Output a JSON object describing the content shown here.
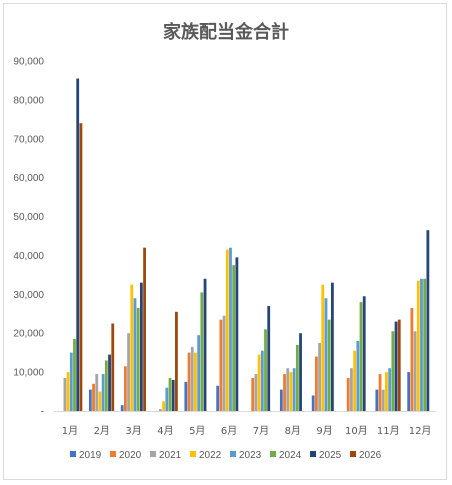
{
  "chart_data": {
    "type": "bar",
    "title": "家族配当金合計",
    "xlabel": "",
    "ylabel": "",
    "ylim": [
      0,
      90000
    ],
    "ytick_step": 10000,
    "ytick_labels": [
      "-",
      "10,000",
      "20,000",
      "30,000",
      "40,000",
      "50,000",
      "60,000",
      "70,000",
      "80,000",
      "90,000"
    ],
    "grid": false,
    "legend_position": "bottom",
    "categories": [
      "1月",
      "2月",
      "3月",
      "4月",
      "5月",
      "6月",
      "7月",
      "8月",
      "9月",
      "10月",
      "11月",
      "12月"
    ],
    "series": [
      {
        "name": "2019",
        "color": "#4472c4",
        "values": [
          0,
          5500,
          1500,
          0,
          7500,
          6500,
          0,
          5500,
          4000,
          0,
          5500,
          10000
        ]
      },
      {
        "name": "2020",
        "color": "#ed7d31",
        "values": [
          0,
          7000,
          11500,
          0,
          15000,
          23500,
          8500,
          9500,
          14000,
          8500,
          9500,
          26500
        ]
      },
      {
        "name": "2021",
        "color": "#a5a5a5",
        "values": [
          8500,
          9500,
          20000,
          500,
          16500,
          24500,
          9500,
          11000,
          17500,
          11000,
          5500,
          20500
        ]
      },
      {
        "name": "2022",
        "color": "#ffc000",
        "values": [
          10000,
          5000,
          32500,
          2500,
          15000,
          41500,
          14500,
          10000,
          32500,
          15500,
          10000,
          33500
        ]
      },
      {
        "name": "2023",
        "color": "#5b9bd5",
        "values": [
          15000,
          9500,
          29000,
          6000,
          19500,
          42000,
          15500,
          11000,
          29000,
          18000,
          11000,
          34000
        ]
      },
      {
        "name": "2024",
        "color": "#70ad47",
        "values": [
          18500,
          13000,
          26500,
          8500,
          30500,
          37500,
          21000,
          17000,
          23500,
          28000,
          20500,
          34000
        ]
      },
      {
        "name": "2025",
        "color": "#264478",
        "values": [
          85500,
          14500,
          33000,
          8000,
          34000,
          39500,
          27000,
          20000,
          33000,
          29500,
          23000,
          46500
        ]
      },
      {
        "name": "2026",
        "color": "#9e480e",
        "values": [
          74000,
          22500,
          42000,
          25500,
          0,
          0,
          0,
          0,
          0,
          0,
          23500,
          0
        ]
      }
    ]
  }
}
